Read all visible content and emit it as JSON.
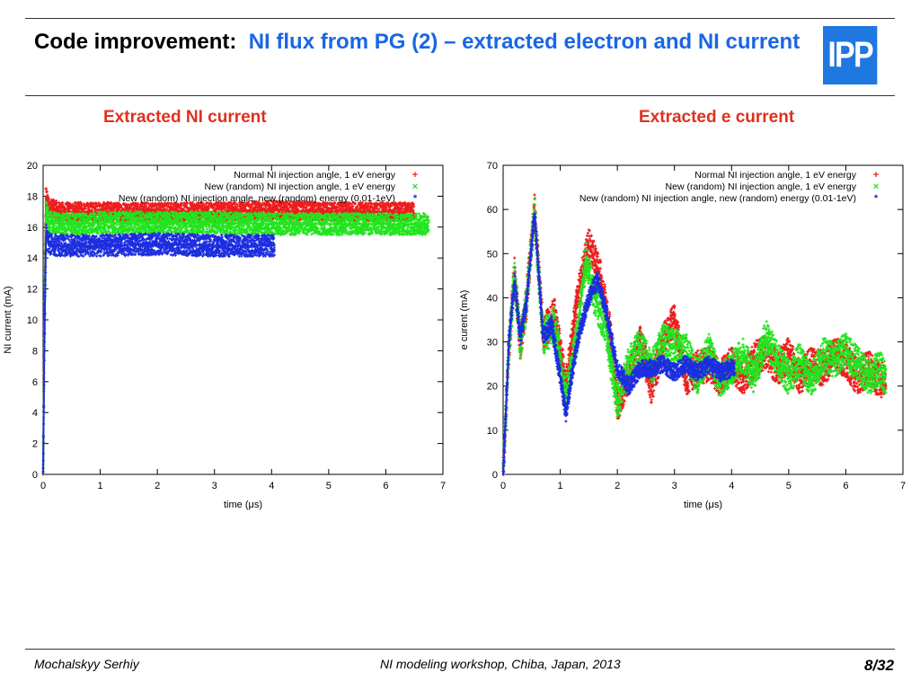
{
  "slide": {
    "title_lead": "Code improvement:",
    "title_rest": "NI flux from PG (2) – extracted electron and NI current",
    "logo_text": "IPP",
    "left_heading": "Extracted NI current",
    "right_heading": "Extracted e current",
    "footer_author": "Mochalskyy Serhiy",
    "footer_event": "NI modeling workshop,  Chiba, Japan, 2013",
    "page": "8/32"
  },
  "colors": {
    "title_blue": "#1a66e6",
    "heading_red": "#e0301e",
    "series_red": "#ee1c1c",
    "series_green": "#22e41e",
    "series_blue": "#1c2de0"
  },
  "chart_data": [
    {
      "type": "line",
      "title": "Extracted NI current",
      "xlabel": "time (μs)",
      "ylabel": "NI current (mA)",
      "xlim": [
        0,
        7
      ],
      "ylim": [
        0,
        20
      ],
      "xticks": [
        0,
        1,
        2,
        3,
        4,
        5,
        6,
        7
      ],
      "yticks": [
        0,
        2,
        4,
        6,
        8,
        10,
        12,
        14,
        16,
        18,
        20
      ],
      "legend_position": "top-right",
      "series": [
        {
          "name": "Normal NI injection angle, 1 eV energy",
          "marker": "+",
          "x": [
            0,
            0.02,
            0.05,
            0.1,
            0.3,
            0.6,
            1,
            2,
            3,
            4,
            5,
            6,
            6.5
          ],
          "y": [
            0,
            10,
            18,
            17.3,
            17,
            17,
            17,
            17,
            17,
            17.1,
            17,
            17,
            17
          ],
          "band": 0.6
        },
        {
          "name": "New (random) NI injection angle, 1 eV energy",
          "marker": "×",
          "x": [
            0,
            0.02,
            0.05,
            0.1,
            0.3,
            0.6,
            1,
            2,
            3,
            4,
            5,
            6,
            6.75
          ],
          "y": [
            0,
            9,
            17,
            16.3,
            16.2,
            16.2,
            16.3,
            16.3,
            16.3,
            16.2,
            16.2,
            16.2,
            16.2
          ],
          "band": 0.7
        },
        {
          "name": "New (random) NI injection angle, new (random) energy (0.01-1eV)",
          "marker": "*",
          "x": [
            0,
            0.02,
            0.05,
            0.1,
            0.3,
            0.6,
            1,
            2,
            3,
            4,
            4.05
          ],
          "y": [
            0,
            8,
            15.5,
            14.9,
            14.8,
            14.8,
            14.8,
            14.9,
            14.8,
            14.8,
            14.8
          ],
          "band": 0.7
        }
      ]
    },
    {
      "type": "line",
      "title": "Extracted e current",
      "xlabel": "time (μs)",
      "ylabel": "e curent (mA)",
      "xlim": [
        0,
        7
      ],
      "ylim": [
        0,
        70
      ],
      "xticks": [
        0,
        1,
        2,
        3,
        4,
        5,
        6,
        7
      ],
      "yticks": [
        0,
        10,
        20,
        30,
        40,
        50,
        60,
        70
      ],
      "legend_position": "top-right",
      "series": [
        {
          "name": "Normal NI injection angle, 1 eV energy",
          "marker": "+",
          "x": [
            0,
            0.1,
            0.2,
            0.3,
            0.4,
            0.55,
            0.7,
            0.9,
            1.1,
            1.3,
            1.5,
            1.7,
            1.9,
            2.0,
            2.2,
            2.4,
            2.6,
            2.8,
            3.0,
            3.2,
            3.4,
            3.6,
            3.8,
            4.0,
            4.2,
            4.4,
            4.6,
            4.8,
            5.0,
            5.2,
            5.4,
            5.6,
            5.8,
            6.0,
            6.2,
            6.4,
            6.6,
            6.7
          ],
          "y": [
            0,
            28,
            46,
            30,
            38,
            60,
            32,
            36,
            20,
            40,
            52,
            45,
            30,
            16,
            22,
            30,
            20,
            30,
            35,
            22,
            24,
            25,
            22,
            25,
            22,
            26,
            28,
            24,
            27,
            22,
            25,
            24,
            27,
            26,
            22,
            24,
            21,
            22
          ],
          "band": 4
        },
        {
          "name": "New (random) NI injection angle, 1 eV energy",
          "marker": "×",
          "x": [
            0,
            0.1,
            0.2,
            0.3,
            0.4,
            0.55,
            0.7,
            0.9,
            1.1,
            1.3,
            1.45,
            1.6,
            1.8,
            2.0,
            2.2,
            2.4,
            2.6,
            2.8,
            3.0,
            3.2,
            3.4,
            3.6,
            3.8,
            4.0,
            4.2,
            4.4,
            4.6,
            4.8,
            5.0,
            5.2,
            5.4,
            5.6,
            5.8,
            6.0,
            6.2,
            6.4,
            6.6,
            6.7
          ],
          "y": [
            0,
            28,
            45,
            30,
            38,
            59,
            31,
            34,
            17,
            32,
            49,
            40,
            33,
            16,
            25,
            29,
            24,
            30,
            29,
            28,
            22,
            28,
            21,
            24,
            27,
            22,
            31,
            26,
            22,
            26,
            21,
            27,
            26,
            28,
            25,
            22,
            24,
            22
          ],
          "band": 4
        },
        {
          "name": "New (random) NI injection angle, new (random) energy (0.01-1eV)",
          "marker": "*",
          "x": [
            0,
            0.1,
            0.2,
            0.3,
            0.4,
            0.55,
            0.7,
            0.85,
            1.1,
            1.3,
            1.5,
            1.65,
            1.8,
            2.0,
            2.2,
            2.4,
            2.6,
            2.8,
            3.0,
            3.2,
            3.4,
            3.6,
            3.8,
            4.0,
            4.05
          ],
          "y": [
            0,
            30,
            44,
            31,
            38,
            59,
            31,
            34,
            14,
            30,
            40,
            44,
            37,
            24,
            20,
            24,
            24,
            25,
            23,
            25,
            23,
            25,
            23,
            24,
            24
          ],
          "band": 2
        }
      ]
    }
  ]
}
